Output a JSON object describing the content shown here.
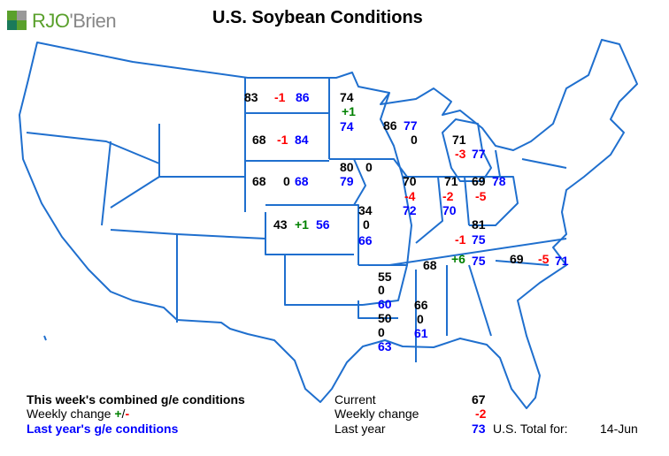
{
  "title": "U.S. Soybean Conditions",
  "logo": {
    "text": "RJO'Brien",
    "brand_color": "#5aa02c"
  },
  "colors": {
    "current": "#000000",
    "increase": "#008000",
    "decrease": "#ff0000",
    "last_year": "#0000ff",
    "borders": "#1f6fce"
  },
  "states": {
    "ND": {
      "current": "83",
      "change": "-1",
      "last": "86"
    },
    "SD": {
      "current": "68",
      "change": "-1",
      "last": "84"
    },
    "NE": {
      "current": "68",
      "change": "0",
      "last": "68"
    },
    "KS": {
      "current": "43",
      "change": "+1",
      "last": "56"
    },
    "MN": {
      "current": "74",
      "change": "+1",
      "last": "74"
    },
    "IA": {
      "current": "80",
      "change": "0",
      "last": "79"
    },
    "MO": {
      "current": "34",
      "change": "0",
      "last": "66"
    },
    "WI": {
      "current": "86",
      "change": "0",
      "last": "77"
    },
    "MI": {
      "current": "71",
      "change": "-3",
      "last": "77"
    },
    "IL": {
      "current": "70",
      "change": "-4",
      "last": "72"
    },
    "IN": {
      "current": "71",
      "change": "-2",
      "last": "70"
    },
    "OH": {
      "current": "69",
      "change": "-5",
      "last": "78"
    },
    "KY": {
      "current": "81",
      "change": "-1",
      "last": "75"
    },
    "TN": {
      "current": "68",
      "change": "+6",
      "last": "75"
    },
    "NC": {
      "current": "69",
      "change": "-5",
      "last": "71"
    },
    "AR": {
      "current": "55",
      "change": "0",
      "last": "60"
    },
    "LA": {
      "current": "50",
      "change": "0",
      "last": "63"
    },
    "MS": {
      "current": "66",
      "change": "0",
      "last": "61"
    }
  },
  "legend": {
    "line1": "This week's combined g/e conditions",
    "line2": "Weekly change",
    "line2_plus": "+",
    "line2_sep": "/",
    "line2_minus": "-",
    "line3": "Last year's g/e conditions"
  },
  "totals": {
    "current_label": "Current",
    "current_value": "67",
    "change_label": "Weekly change",
    "change_value": "-2",
    "last_label": "Last year",
    "last_value": "73",
    "total_label": "U.S. Total for:",
    "date": "14-Jun"
  }
}
